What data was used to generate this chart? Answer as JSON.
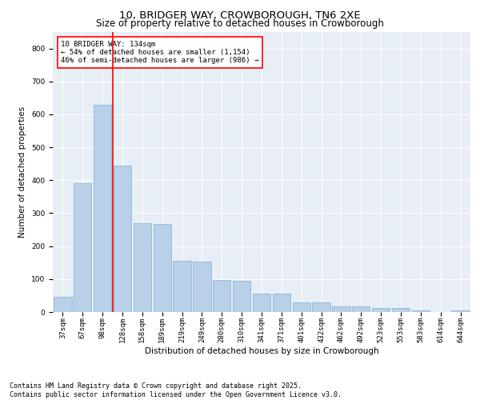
{
  "title": "10, BRIDGER WAY, CROWBOROUGH, TN6 2XE",
  "subtitle": "Size of property relative to detached houses in Crowborough",
  "xlabel": "Distribution of detached houses by size in Crowborough",
  "ylabel": "Number of detached properties",
  "categories": [
    "37sqm",
    "67sqm",
    "98sqm",
    "128sqm",
    "158sqm",
    "189sqm",
    "219sqm",
    "249sqm",
    "280sqm",
    "310sqm",
    "341sqm",
    "371sqm",
    "401sqm",
    "432sqm",
    "462sqm",
    "492sqm",
    "523sqm",
    "553sqm",
    "583sqm",
    "614sqm",
    "644sqm"
  ],
  "values": [
    47,
    390,
    630,
    445,
    270,
    268,
    155,
    152,
    97,
    95,
    57,
    57,
    30,
    30,
    18,
    17,
    12,
    12,
    5,
    0,
    5
  ],
  "bar_color": "#b8d0e8",
  "bar_edge_color": "#7aafd4",
  "vline_x_index": 2.5,
  "vline_color": "red",
  "annotation_text": "10 BRIDGER WAY: 134sqm\n← 54% of detached houses are smaller (1,154)\n46% of semi-detached houses are larger (986) →",
  "annotation_box_color": "white",
  "annotation_box_edge": "red",
  "ylim": [
    0,
    850
  ],
  "yticks": [
    0,
    100,
    200,
    300,
    400,
    500,
    600,
    700,
    800
  ],
  "background_color": "#e8eef5",
  "footer_text": "Contains HM Land Registry data © Crown copyright and database right 2025.\nContains public sector information licensed under the Open Government Licence v3.0.",
  "title_fontsize": 9.5,
  "subtitle_fontsize": 8.5,
  "axis_fontsize": 7.5,
  "tick_fontsize": 6.5,
  "annot_fontsize": 6.5,
  "footer_fontsize": 6
}
